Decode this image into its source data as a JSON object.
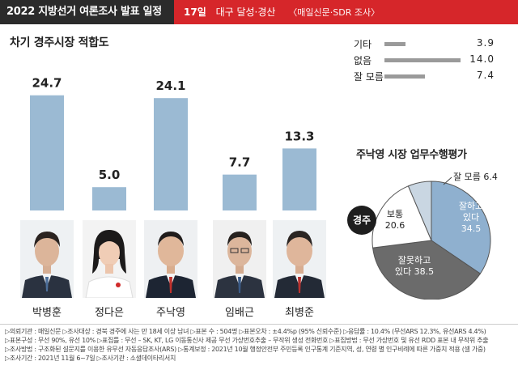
{
  "header": {
    "title": "2022 지방선거 여론조사 발표 일정",
    "day": "17일",
    "region": "대구 달성·경산",
    "source": "〈매일신문·SDR 조사〉"
  },
  "left_title": "차기 경주시장 적합도",
  "chart_data": [
    {
      "type": "bar",
      "title": "차기 경주시장 적합도",
      "categories": [
        "박병훈",
        "정다은",
        "주낙영",
        "임배근",
        "최병준"
      ],
      "values": [
        24.7,
        5.0,
        24.1,
        7.7,
        13.3
      ],
      "value_labels": [
        "24.7",
        "5.0",
        "24.1",
        "7.7",
        "13.3"
      ],
      "ylim": [
        0,
        25
      ],
      "color": "#9bbad3"
    },
    {
      "type": "bar",
      "orientation": "horizontal",
      "categories": [
        "기타",
        "없음",
        "잘 모름"
      ],
      "values": [
        3.9,
        14.0,
        7.4
      ],
      "value_labels": [
        "3.9",
        "14.0",
        "7.4"
      ],
      "xlim": [
        0,
        14
      ],
      "color": "#9a9a9a"
    },
    {
      "type": "pie",
      "title": "주낙영 시장 업무수행평가",
      "slices": [
        {
          "label_lines": [
            "잘하고",
            "있다"
          ],
          "value_label": "34.5",
          "value": 34.5,
          "color": "#8fb0cf"
        },
        {
          "label_lines": [
            "잘못하고",
            "있다 38.5"
          ],
          "value_label": "",
          "value": 38.5,
          "color": "#6b6b6b"
        },
        {
          "label_lines": [
            "보통"
          ],
          "value_label": "20.6",
          "value": 20.6,
          "color": "#ffffff"
        },
        {
          "label_lines": [
            "잘 모름 6.4"
          ],
          "value_label": "",
          "value": 6.4,
          "color": "#c9d6e2"
        }
      ]
    }
  ],
  "region_badge": "경주",
  "footnotes": [
    "▷의뢰기관 : 매일신문 ▷조사대상 : 경북 경주에 사는 만 18세 이상 남녀 ▷표본 수 : 504명 ▷표본오차 : ±4.4%p (95% 신뢰수준) ▷응답률 : 10.4% (무선ARS 12.3%, 유선ARS 4.4%)",
    "▷표본구성 : 무선 90%, 유선 10% ▷표집틀 : 무선 – SK, KT, LG 이동통신사 제공 무선 가상번호추출 – 무작위 생성 전화번호 ▷표집방법 : 무선 가상번호 및 유선 RDD 표본 내 무작위 추출",
    "▷조사방법 : 구조화된 설문지를 이용한 유무선 자동응답조사(ARS) ▷통계보정 : 2021년 10월 행정안전부 주민등록 인구통계 기준지역, 성, 연령 별 인구비례에 따른 가중치 적용 (셀 가중)",
    "▷조사기간 : 2021년 11월 6~7일 ▷조사기관 : 소셜데이타리서치"
  ]
}
